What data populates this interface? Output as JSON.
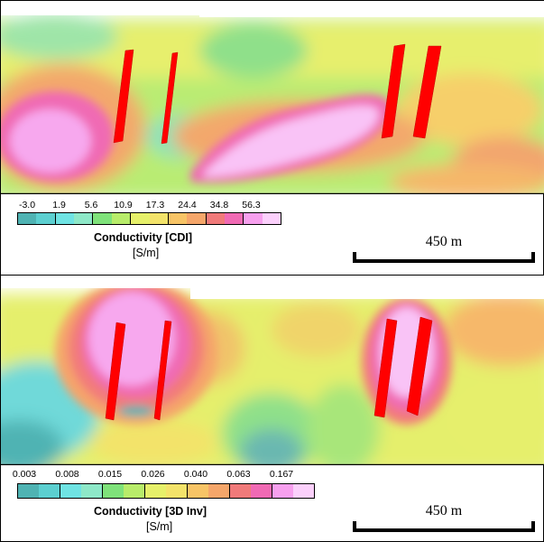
{
  "panels": [
    {
      "id": "cdi",
      "legend": {
        "ticks": [
          "-3.0",
          "1.9",
          "5.6",
          "10.9",
          "17.3",
          "24.4",
          "34.8",
          "56.3"
        ],
        "title": "Conductivity [CDI]",
        "unit": "[S/m]"
      },
      "scalebar": {
        "label": "450 m"
      }
    },
    {
      "id": "3d-inv",
      "legend": {
        "ticks": [
          "0.003",
          "0.008",
          "0.015",
          "0.026",
          "0.040",
          "0.063",
          "0.167"
        ],
        "title": "Conductivity [3D Inv]",
        "unit": "[S/m]"
      },
      "scalebar": {
        "label": "450 m"
      }
    }
  ],
  "colors": {
    "palette": [
      "#4fb3b3",
      "#5ccfd0",
      "#6fe3e3",
      "#8ee8c8",
      "#7fe27a",
      "#b8ec6a",
      "#e6f06a",
      "#f3e36a",
      "#f7c466",
      "#f5a66a",
      "#f07a7a",
      "#f06ab4",
      "#f7a0ee",
      "#fbd0fb"
    ],
    "target": "#ff0000"
  }
}
